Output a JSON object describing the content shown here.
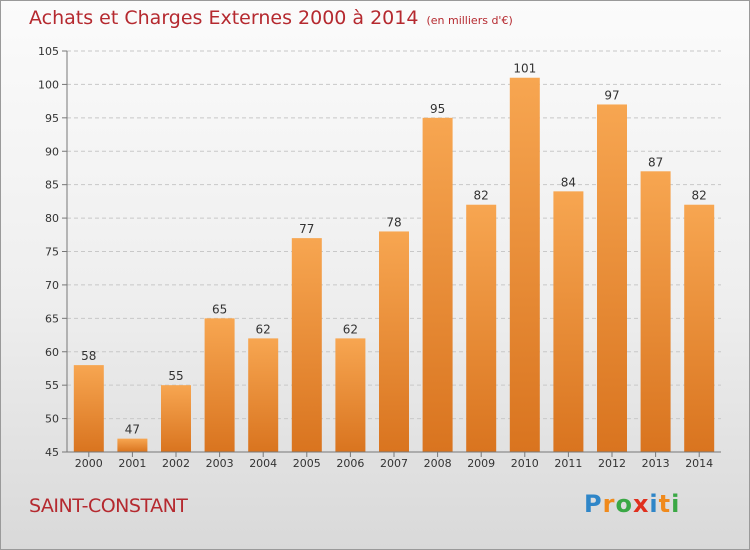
{
  "header": {
    "title": "Achats et Charges Externes 2000 à 2014",
    "unit_note": "(en milliers d'€)"
  },
  "footer": {
    "place": "SAINT-CONSTANT"
  },
  "logo": {
    "text": "Proxiti",
    "letters": [
      {
        "ch": "P",
        "color": "#2f86c8"
      },
      {
        "ch": "r",
        "color": "#f08a1c"
      },
      {
        "ch": "o",
        "color": "#3aa845"
      },
      {
        "ch": "x",
        "color": "#e0301e"
      },
      {
        "ch": "i",
        "color": "#2f86c8"
      },
      {
        "ch": "t",
        "color": "#f08a1c"
      },
      {
        "ch": "i",
        "color": "#3aa845"
      }
    ]
  },
  "colors": {
    "title": "#b5292f",
    "bar_top": "#f7a651",
    "bar_bottom": "#d9741f",
    "grid": "#c8c8c8",
    "axis_text": "#333333"
  },
  "chart_data": {
    "type": "bar",
    "title": "Achats et Charges Externes 2000 à 2014",
    "categories": [
      "2000",
      "2001",
      "2002",
      "2003",
      "2004",
      "2005",
      "2006",
      "2007",
      "2008",
      "2009",
      "2010",
      "2011",
      "2012",
      "2013",
      "2014"
    ],
    "values": [
      58,
      47,
      55,
      65,
      62,
      77,
      62,
      78,
      95,
      82,
      101,
      84,
      97,
      87,
      82
    ],
    "ylim": [
      45,
      105
    ],
    "yticks": [
      45,
      50,
      55,
      60,
      65,
      70,
      75,
      80,
      85,
      90,
      95,
      100,
      105
    ],
    "grid": true,
    "data_labels": true
  }
}
